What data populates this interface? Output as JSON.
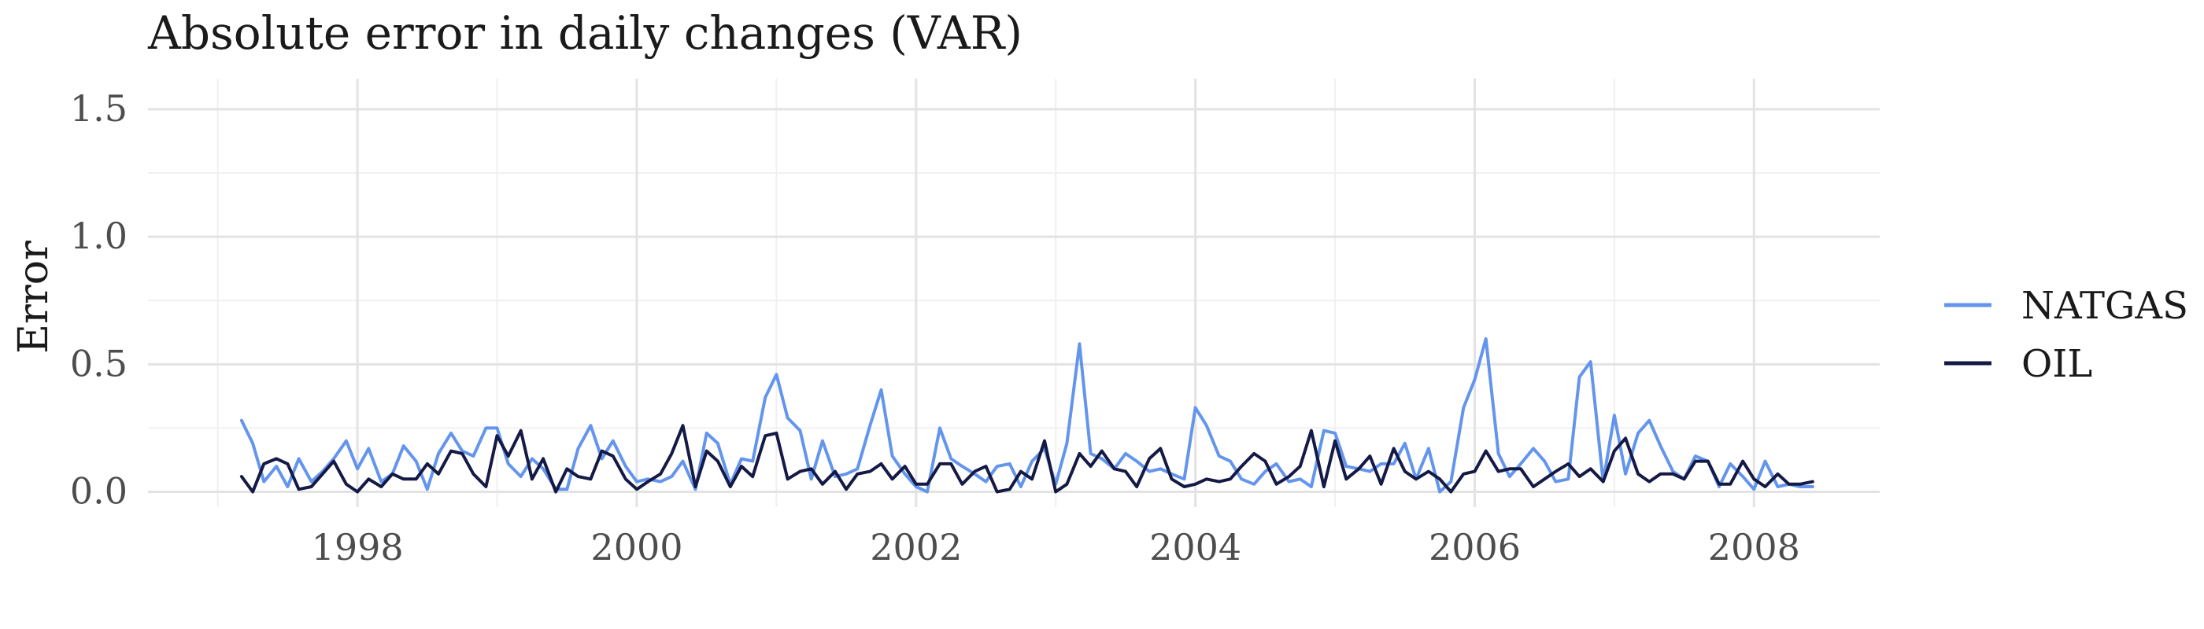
{
  "chart_data": {
    "type": "line",
    "title": "Absolute error in daily changes (VAR)",
    "xlabel": "",
    "ylabel": "Error",
    "xlim": [
      1996.5,
      2008.9
    ],
    "ylim": [
      -0.06,
      1.62
    ],
    "xticks": [
      {
        "value": 1998,
        "label": "1998"
      },
      {
        "value": 2000,
        "label": "2000"
      },
      {
        "value": 2002,
        "label": "2002"
      },
      {
        "value": 2004,
        "label": "2004"
      },
      {
        "value": 2006,
        "label": "2006"
      },
      {
        "value": 2008,
        "label": "2008"
      }
    ],
    "yticks": [
      {
        "value": 0.0,
        "label": "0.0"
      },
      {
        "value": 0.5,
        "label": "0.5"
      },
      {
        "value": 1.0,
        "label": "1.0"
      },
      {
        "value": 1.5,
        "label": "1.5"
      }
    ],
    "grid": true,
    "legend_position": "right",
    "x": [
      1997.17,
      1997.25,
      1997.33,
      1997.42,
      1997.5,
      1997.58,
      1997.67,
      1997.75,
      1997.83,
      1997.92,
      1998.0,
      1998.08,
      1998.17,
      1998.25,
      1998.33,
      1998.42,
      1998.5,
      1998.58,
      1998.67,
      1998.75,
      1998.83,
      1998.92,
      1999.0,
      1999.08,
      1999.17,
      1999.25,
      1999.33,
      1999.42,
      1999.5,
      1999.58,
      1999.67,
      1999.75,
      1999.83,
      1999.92,
      2000.0,
      2000.08,
      2000.17,
      2000.25,
      2000.33,
      2000.42,
      2000.5,
      2000.58,
      2000.67,
      2000.75,
      2000.83,
      2000.92,
      2001.0,
      2001.08,
      2001.17,
      2001.25,
      2001.33,
      2001.42,
      2001.5,
      2001.58,
      2001.67,
      2001.75,
      2001.83,
      2001.92,
      2002.0,
      2002.08,
      2002.17,
      2002.25,
      2002.33,
      2002.42,
      2002.5,
      2002.58,
      2002.67,
      2002.75,
      2002.83,
      2002.92,
      2003.0,
      2003.08,
      2003.17,
      2003.25,
      2003.33,
      2003.42,
      2003.5,
      2003.58,
      2003.67,
      2003.75,
      2003.83,
      2003.92,
      2004.0,
      2004.08,
      2004.17,
      2004.25,
      2004.33,
      2004.42,
      2004.5,
      2004.58,
      2004.67,
      2004.75,
      2004.83,
      2004.92,
      2005.0,
      2005.08,
      2005.17,
      2005.25,
      2005.33,
      2005.42,
      2005.5,
      2005.58,
      2005.67,
      2005.75,
      2005.83,
      2005.92,
      2006.0,
      2006.08,
      2006.17,
      2006.25,
      2006.33,
      2006.42,
      2006.5,
      2006.58,
      2006.67,
      2006.75,
      2006.83,
      2006.92,
      2007.0,
      2007.08,
      2007.17,
      2007.25,
      2007.33,
      2007.42,
      2007.5,
      2007.58,
      2007.67,
      2007.75,
      2007.83,
      2007.92,
      2008.0,
      2008.08,
      2008.17,
      2008.25,
      2008.33,
      2008.42
    ],
    "series": [
      {
        "name": "NATGAS",
        "color": "#6495ed",
        "values": [
          0.28,
          0.19,
          0.04,
          0.1,
          0.02,
          0.13,
          0.04,
          0.08,
          0.13,
          0.2,
          0.09,
          0.17,
          0.04,
          0.07,
          0.18,
          0.12,
          0.01,
          0.15,
          0.23,
          0.16,
          0.14,
          0.25,
          0.25,
          0.11,
          0.06,
          0.13,
          0.09,
          0.01,
          0.01,
          0.17,
          0.26,
          0.13,
          0.2,
          0.1,
          0.04,
          0.05,
          0.04,
          0.06,
          0.12,
          0.01,
          0.23,
          0.19,
          0.03,
          0.13,
          0.12,
          0.37,
          0.46,
          0.29,
          0.24,
          0.05,
          0.2,
          0.06,
          0.07,
          0.09,
          0.26,
          0.4,
          0.14,
          0.07,
          0.02,
          0.0,
          0.25,
          0.13,
          0.1,
          0.07,
          0.04,
          0.1,
          0.11,
          0.02,
          0.12,
          0.17,
          0.03,
          0.19,
          0.58,
          0.15,
          0.13,
          0.09,
          0.15,
          0.12,
          0.08,
          0.09,
          0.07,
          0.05,
          0.33,
          0.26,
          0.14,
          0.12,
          0.05,
          0.03,
          0.08,
          0.11,
          0.04,
          0.05,
          0.02,
          0.24,
          0.23,
          0.1,
          0.09,
          0.08,
          0.11,
          0.11,
          0.19,
          0.05,
          0.17,
          0.0,
          0.04,
          0.33,
          0.44,
          0.6,
          0.15,
          0.06,
          0.11,
          0.17,
          0.12,
          0.04,
          0.05,
          0.45,
          0.51,
          0.04,
          0.3,
          0.07,
          0.23,
          0.28,
          0.18,
          0.08,
          0.05,
          0.14,
          0.12,
          0.02,
          0.11,
          0.06,
          0.01,
          0.12,
          0.02,
          0.03,
          0.02,
          0.02
        ]
      },
      {
        "name": "OIL",
        "color": "#141a45",
        "values": [
          0.06,
          0.0,
          0.11,
          0.13,
          0.11,
          0.01,
          0.02,
          0.07,
          0.12,
          0.03,
          0.0,
          0.05,
          0.02,
          0.07,
          0.05,
          0.05,
          0.11,
          0.07,
          0.16,
          0.15,
          0.07,
          0.02,
          0.22,
          0.14,
          0.24,
          0.05,
          0.13,
          0.0,
          0.09,
          0.06,
          0.05,
          0.16,
          0.14,
          0.05,
          0.01,
          0.04,
          0.07,
          0.15,
          0.26,
          0.02,
          0.16,
          0.12,
          0.02,
          0.1,
          0.06,
          0.22,
          0.23,
          0.05,
          0.08,
          0.09,
          0.03,
          0.08,
          0.01,
          0.07,
          0.08,
          0.11,
          0.05,
          0.1,
          0.03,
          0.03,
          0.11,
          0.11,
          0.03,
          0.08,
          0.1,
          0.0,
          0.01,
          0.08,
          0.05,
          0.2,
          0.0,
          0.03,
          0.15,
          0.1,
          0.16,
          0.09,
          0.08,
          0.02,
          0.13,
          0.17,
          0.05,
          0.02,
          0.03,
          0.05,
          0.04,
          0.05,
          0.1,
          0.15,
          0.12,
          0.03,
          0.06,
          0.1,
          0.24,
          0.02,
          0.2,
          0.05,
          0.09,
          0.14,
          0.03,
          0.17,
          0.08,
          0.05,
          0.08,
          0.05,
          0.0,
          0.07,
          0.08,
          0.16,
          0.08,
          0.09,
          0.09,
          0.02,
          0.05,
          0.08,
          0.11,
          0.06,
          0.09,
          0.04,
          0.16,
          0.21,
          0.07,
          0.04,
          0.07,
          0.07,
          0.05,
          0.12,
          0.12,
          0.03,
          0.03,
          0.12,
          0.05,
          0.02,
          0.07,
          0.03,
          0.03,
          0.04
        ]
      }
    ]
  }
}
